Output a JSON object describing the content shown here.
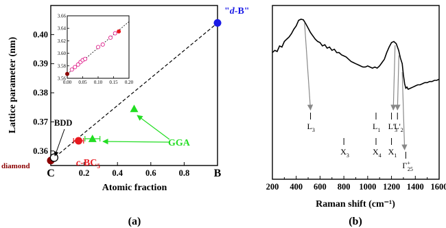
{
  "chart_data": [
    {
      "type": "scatter",
      "panel_label": "(a)",
      "xlabel": "Atomic fraction",
      "ylabel": "Lattice parameter (nm)",
      "xlim": [
        0,
        1
      ],
      "ylim": [
        0.355,
        0.41
      ],
      "x_ticks": [
        0.2,
        0.4,
        0.6,
        0.8
      ],
      "x_end_labels": {
        "left": "C",
        "right": "B"
      },
      "y_ticks": [
        0.36,
        0.37,
        0.38,
        0.39,
        0.4
      ],
      "dashed_line": {
        "x": [
          0,
          1
        ],
        "y": [
          0.3567,
          0.404
        ]
      },
      "series": [
        {
          "name": "diamond",
          "marker": "circle",
          "color": "#8b0000",
          "points": [
            {
              "x": 0,
              "y": 0.3567
            }
          ]
        },
        {
          "name": "BDD",
          "marker": "open-circle",
          "color": "#000000",
          "points": [
            {
              "x": 0.02,
              "y": 0.3577
            }
          ]
        },
        {
          "name": "c-BC",
          "name_subscript": "5",
          "marker": "circle",
          "color": "#e8181e",
          "points": [
            {
              "x": 0.1667,
              "y": 0.3635,
              "xerr": 0.03
            }
          ]
        },
        {
          "name": "\"d-B\"",
          "marker": "circle",
          "color": "#1a1ae6",
          "points": [
            {
              "x": 1.0,
              "y": 0.404
            }
          ]
        },
        {
          "name": "GGA",
          "marker": "triangle",
          "color": "#22dd22",
          "points": [
            {
              "x": 0.25,
              "y": 0.3642,
              "xerr": 0.045
            },
            {
              "x": 0.5,
              "y": 0.3745
            }
          ]
        }
      ],
      "annotations": [
        "BDD",
        "GGA",
        "diamond",
        "c-BC5",
        "\"d-B\""
      ],
      "inset": {
        "xlim": [
          0,
          0.2
        ],
        "ylim": [
          3.56,
          3.66
        ],
        "x_ticks": [
          "0.00",
          "0.05",
          "0.10",
          "0.15",
          "0.20"
        ],
        "y_ticks": [
          "3.56",
          "3.58",
          "3.60",
          "3.62",
          "3.64",
          "3.66"
        ],
        "fit_line": {
          "x": [
            0,
            0.2
          ],
          "y": [
            3.5667,
            3.6507
          ]
        },
        "points_open": [
          {
            "x": 0.015,
            "y": 3.574
          },
          {
            "x": 0.025,
            "y": 3.578
          },
          {
            "x": 0.035,
            "y": 3.582
          },
          {
            "x": 0.043,
            "y": 3.586
          },
          {
            "x": 0.05,
            "y": 3.589
          },
          {
            "x": 0.058,
            "y": 3.591
          },
          {
            "x": 0.1,
            "y": 3.61
          },
          {
            "x": 0.115,
            "y": 3.614
          },
          {
            "x": 0.14,
            "y": 3.625
          },
          {
            "x": 0.155,
            "y": 3.632
          }
        ],
        "points_filled": [
          {
            "x": 0,
            "y": 3.567,
            "color": "#8b0000"
          },
          {
            "x": 0.167,
            "y": 3.635,
            "color": "#e8181e"
          }
        ]
      }
    },
    {
      "type": "line",
      "panel_label": "(b)",
      "xlabel": "Raman shift (cm⁻¹)",
      "xlim": [
        200,
        1600
      ],
      "x_ticks": [
        200,
        400,
        600,
        800,
        1000,
        1200,
        1400,
        1600
      ],
      "spectrum": {
        "x": [
          200,
          220,
          240,
          260,
          280,
          300,
          320,
          340,
          360,
          380,
          400,
          420,
          440,
          460,
          480,
          500,
          520,
          540,
          560,
          580,
          600,
          620,
          640,
          660,
          680,
          700,
          720,
          740,
          760,
          780,
          800,
          820,
          840,
          860,
          880,
          900,
          920,
          940,
          960,
          980,
          1000,
          1020,
          1040,
          1060,
          1080,
          1100,
          1120,
          1140,
          1160,
          1180,
          1200,
          1220,
          1240,
          1260,
          1275,
          1290,
          1300,
          1310,
          1320,
          1330,
          1340,
          1360,
          1380,
          1400,
          1420,
          1440,
          1460,
          1480,
          1500,
          1520,
          1540,
          1560,
          1580,
          1600
        ],
        "y": [
          0.7,
          0.72,
          0.71,
          0.76,
          0.75,
          0.8,
          0.82,
          0.84,
          0.87,
          0.91,
          0.94,
          0.99,
          1.0,
          0.995,
          0.96,
          0.92,
          0.88,
          0.85,
          0.82,
          0.8,
          0.79,
          0.76,
          0.77,
          0.74,
          0.75,
          0.72,
          0.73,
          0.7,
          0.7,
          0.68,
          0.67,
          0.66,
          0.64,
          0.62,
          0.61,
          0.6,
          0.59,
          0.58,
          0.57,
          0.57,
          0.58,
          0.57,
          0.56,
          0.57,
          0.56,
          0.58,
          0.61,
          0.64,
          0.7,
          0.75,
          0.79,
          0.8,
          0.78,
          0.72,
          0.65,
          0.6,
          0.5,
          0.42,
          0.38,
          0.39,
          0.37,
          0.38,
          0.39,
          0.4,
          0.41,
          0.41,
          0.42,
          0.43,
          0.43,
          0.44,
          0.44,
          0.45,
          0.45,
          0.46
        ]
      },
      "phonon_labels": [
        {
          "label": "L",
          "sub": "3",
          "x": 520,
          "row": 1
        },
        {
          "label": "X",
          "sub": "3",
          "x": 800,
          "row": 2
        },
        {
          "label": "L",
          "sub": "1",
          "x": 1070,
          "row": 1
        },
        {
          "label": "X",
          "sub": "4",
          "x": 1070,
          "row": 2
        },
        {
          "label": "L'",
          "sub": "3",
          "x": 1200,
          "row": 1
        },
        {
          "label": "L'",
          "sub": "2",
          "x": 1250,
          "row": 1
        },
        {
          "label": "X",
          "sub": "1",
          "x": 1200,
          "row": 2
        },
        {
          "label": "Γ",
          "sup": "+",
          "sub": "25",
          "x": 1320,
          "row": 3
        }
      ],
      "arrows": [
        {
          "from_x": 470,
          "to_x": 520
        },
        {
          "from_x": 1230,
          "to_x": 1215
        },
        {
          "from_x": 1262,
          "to_x": 1250
        },
        {
          "from_x": 1290,
          "to_x": 1310
        }
      ]
    }
  ]
}
